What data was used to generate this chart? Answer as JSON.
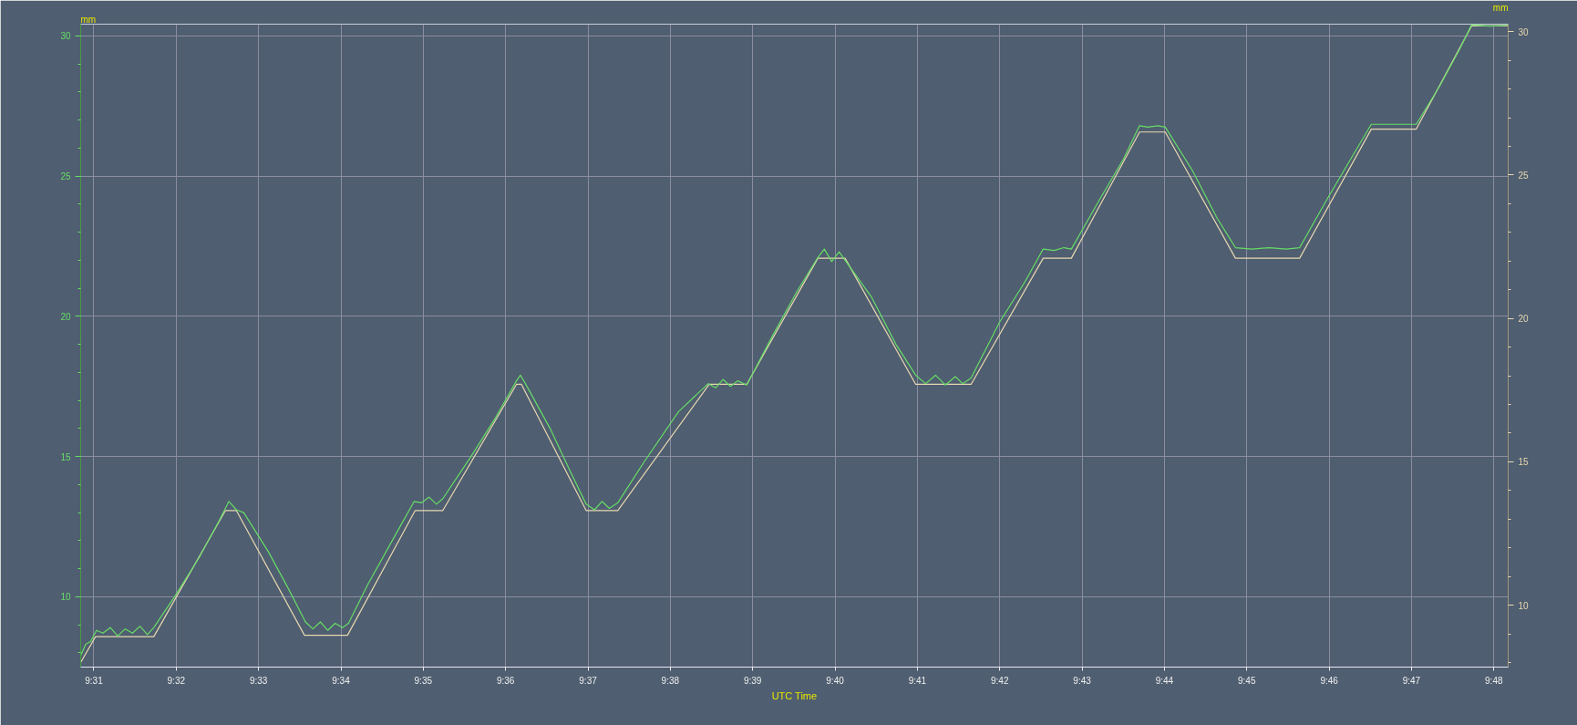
{
  "chart_data": {
    "type": "line",
    "xlabel": "UTC Time",
    "ylabel": "mm",
    "y2label": "mm",
    "xlim": [
      9.514,
      9.8029
    ],
    "xticks": [
      {
        "value": 9.51667,
        "label": "9:31"
      },
      {
        "value": 9.53333,
        "label": "9:32"
      },
      {
        "value": 9.55,
        "label": "9:33"
      },
      {
        "value": 9.56667,
        "label": "9:34"
      },
      {
        "value": 9.58333,
        "label": "9:35"
      },
      {
        "value": 9.6,
        "label": "9:36"
      },
      {
        "value": 9.61667,
        "label": "9:37"
      },
      {
        "value": 9.63333,
        "label": "9:38"
      },
      {
        "value": 9.65,
        "label": "9:39"
      },
      {
        "value": 9.66667,
        "label": "9:40"
      },
      {
        "value": 9.68333,
        "label": "9:41"
      },
      {
        "value": 9.7,
        "label": "9:42"
      },
      {
        "value": 9.71667,
        "label": "9:43"
      },
      {
        "value": 9.73333,
        "label": "9:44"
      },
      {
        "value": 9.75,
        "label": "9:45"
      },
      {
        "value": 9.76667,
        "label": "9:46"
      },
      {
        "value": 9.78333,
        "label": "9:47"
      },
      {
        "value": 9.8,
        "label": "9:48"
      }
    ],
    "ylim": [
      7.49,
      30.42
    ],
    "yticks": [
      10,
      15,
      20,
      25,
      30
    ],
    "y2lim": [
      7.84,
      30.26
    ],
    "y2ticks": [
      10,
      15,
      20,
      25,
      30
    ],
    "grid": true,
    "series": [
      {
        "color": "#66dd66",
        "x": [
          9.514,
          9.515,
          9.516,
          9.5172,
          9.5185,
          9.52,
          9.5215,
          9.523,
          9.5245,
          9.526,
          9.5275,
          9.5288,
          9.533,
          9.538,
          9.542,
          9.544,
          9.5455,
          9.547,
          9.552,
          9.556,
          9.5595,
          9.561,
          9.5625,
          9.564,
          9.5655,
          9.567,
          9.5682,
          9.572,
          9.578,
          9.5815,
          9.583,
          9.5845,
          9.586,
          9.5873,
          9.593,
          9.598,
          9.6022,
          9.603,
          9.604,
          9.609,
          9.613,
          9.6163,
          9.618,
          9.6195,
          9.621,
          9.6227,
          9.628,
          9.635,
          9.641,
          9.6425,
          9.644,
          9.6455,
          9.647,
          9.6488,
          9.654,
          9.659,
          9.6632,
          9.6645,
          9.666,
          9.6675,
          9.6687,
          9.674,
          9.679,
          9.683,
          9.685,
          9.687,
          9.689,
          9.691,
          9.6925,
          9.6942,
          9.7,
          9.705,
          9.7088,
          9.711,
          9.713,
          9.7145,
          9.72,
          9.725,
          9.7283,
          9.73,
          9.732,
          9.7335,
          9.739,
          9.744,
          9.7477,
          9.751,
          9.7545,
          9.758,
          9.7607,
          9.766,
          9.771,
          9.7752,
          9.78,
          9.7843,
          9.789,
          9.793,
          9.7955,
          9.799,
          9.8028
        ],
        "values": [
          7.9,
          8.3,
          8.4,
          8.8,
          8.7,
          8.9,
          8.6,
          8.85,
          8.7,
          8.95,
          8.65,
          8.9,
          10.0,
          11.4,
          12.7,
          13.4,
          13.1,
          13.0,
          11.6,
          10.3,
          9.1,
          8.85,
          9.1,
          8.8,
          9.05,
          8.9,
          9.05,
          10.4,
          12.3,
          13.4,
          13.35,
          13.55,
          13.3,
          13.5,
          15.0,
          16.4,
          17.7,
          17.9,
          17.6,
          16.0,
          14.5,
          13.3,
          13.1,
          13.4,
          13.15,
          13.35,
          14.8,
          16.6,
          17.6,
          17.45,
          17.75,
          17.5,
          17.7,
          17.55,
          19.3,
          20.9,
          22.1,
          22.4,
          21.95,
          22.3,
          22.0,
          20.7,
          19.0,
          17.9,
          17.6,
          17.9,
          17.55,
          17.85,
          17.6,
          17.8,
          19.8,
          21.2,
          22.4,
          22.35,
          22.45,
          22.4,
          24.1,
          25.6,
          26.8,
          26.75,
          26.8,
          26.75,
          25.2,
          23.5,
          22.45,
          22.4,
          22.45,
          22.4,
          22.45,
          24.1,
          25.6,
          26.85,
          26.85,
          26.85,
          28.2,
          29.5,
          30.4,
          30.35,
          30.38
        ]
      },
      {
        "color": "#e8d8b0",
        "axis": "y2",
        "x": [
          9.514,
          9.517,
          9.5288,
          9.5433,
          9.5455,
          9.5593,
          9.568,
          9.5817,
          9.5873,
          9.6022,
          9.6032,
          9.6163,
          9.6227,
          9.6412,
          9.6488,
          9.6632,
          9.6687,
          9.683,
          9.6942,
          9.7088,
          9.7145,
          9.7283,
          9.7335,
          9.7477,
          9.7607,
          9.7752,
          9.7843,
          9.7955,
          9.8028
        ],
        "values": [
          8.0,
          8.9,
          8.9,
          13.3,
          13.3,
          8.95,
          8.95,
          13.3,
          13.3,
          17.7,
          17.7,
          13.3,
          13.3,
          17.7,
          17.7,
          22.1,
          22.1,
          17.7,
          17.7,
          22.1,
          22.1,
          26.5,
          26.5,
          22.1,
          22.1,
          26.6,
          26.6,
          30.2,
          30.2
        ]
      }
    ]
  }
}
